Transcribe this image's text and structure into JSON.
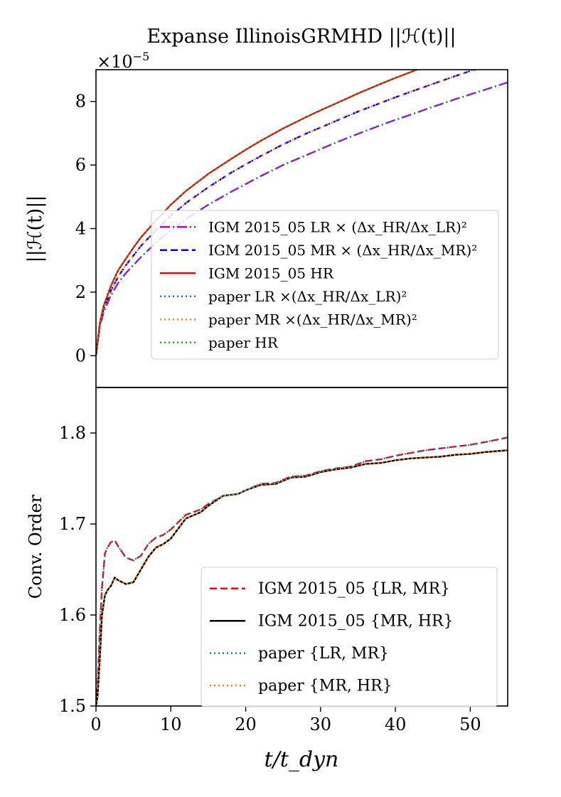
{
  "chart_data": [
    {
      "type": "line",
      "title": "Expanse IllinoisGRMHD ||ℋ(t)||",
      "ylabel": "||ℋ(t)||",
      "xlabel": "",
      "scale_label": "×10",
      "scale_exp": "−5",
      "xlim": [
        0,
        55
      ],
      "ylim": [
        -1.0,
        9.0
      ],
      "yticks": [
        {
          "value": 0,
          "label": "0"
        },
        {
          "value": 2,
          "label": "2"
        },
        {
          "value": 4,
          "label": "4"
        },
        {
          "value": 6,
          "label": "6"
        },
        {
          "value": 8,
          "label": "8"
        }
      ],
      "legend_position": "lower-right",
      "x": [
        0,
        0.5,
        1,
        2,
        3,
        4,
        5,
        6,
        8,
        10,
        12,
        15,
        18,
        20,
        22,
        25,
        28,
        30,
        32,
        35,
        38,
        40,
        42,
        45,
        48,
        50,
        52,
        55
      ],
      "series": [
        {
          "name": "IGM 2015_05 LR × (Δx_HR/Δx_LR)²",
          "color": "#bf00bf",
          "dash": "dashdot",
          "values": [
            0.0,
            0.9,
            1.35,
            1.9,
            2.3,
            2.6,
            2.85,
            3.1,
            3.55,
            3.95,
            4.3,
            4.75,
            5.15,
            5.4,
            5.65,
            6.0,
            6.3,
            6.5,
            6.7,
            6.98,
            7.25,
            7.42,
            7.58,
            7.83,
            8.07,
            8.22,
            8.37,
            8.6
          ]
        },
        {
          "name": "IGM 2015_05 MR × (Δx_HR/Δx_MR)²",
          "color": "#0000ff",
          "dash": "dashed",
          "values": [
            0.0,
            0.95,
            1.45,
            2.05,
            2.5,
            2.85,
            3.15,
            3.45,
            3.95,
            4.4,
            4.8,
            5.3,
            5.75,
            6.02,
            6.28,
            6.65,
            6.98,
            7.18,
            7.38,
            7.68,
            7.95,
            8.13,
            8.3,
            8.55,
            8.8,
            8.96,
            9.1,
            9.35
          ]
        },
        {
          "name": "IGM 2015_05 HR",
          "color": "#ff0000",
          "dash": "solid",
          "values": [
            0.0,
            1.0,
            1.55,
            2.2,
            2.7,
            3.05,
            3.4,
            3.72,
            4.25,
            4.75,
            5.18,
            5.72,
            6.18,
            6.48,
            6.76,
            7.15,
            7.5,
            7.72,
            7.93,
            8.25,
            8.55,
            8.74,
            8.92,
            9.2,
            9.45,
            9.62,
            9.78,
            10.0
          ]
        },
        {
          "name": "paper LR ×(Δx_HR/Δx_LR)²",
          "color": "#1f77b4",
          "dash": "dotted",
          "values": [
            0.0,
            0.9,
            1.35,
            1.9,
            2.3,
            2.6,
            2.85,
            3.1,
            3.55,
            3.95,
            4.3,
            4.75,
            5.15,
            5.4,
            5.65,
            6.0,
            6.3,
            6.5,
            6.7,
            6.98,
            7.25,
            7.42,
            7.58,
            7.83,
            8.07,
            8.22,
            8.37,
            8.6
          ]
        },
        {
          "name": "paper MR ×(Δx_HR/Δx_MR)²",
          "color": "#ff7f0e",
          "dash": "dotted",
          "values": [
            0.0,
            0.95,
            1.45,
            2.05,
            2.5,
            2.85,
            3.15,
            3.45,
            3.95,
            4.4,
            4.8,
            5.3,
            5.75,
            6.02,
            6.28,
            6.65,
            6.98,
            7.18,
            7.38,
            7.68,
            7.95,
            8.13,
            8.3,
            8.55,
            8.8,
            8.96,
            9.1,
            9.35
          ]
        },
        {
          "name": "paper HR",
          "color": "#2ca02c",
          "dash": "dotted",
          "values": [
            0.0,
            1.0,
            1.55,
            2.2,
            2.7,
            3.05,
            3.4,
            3.72,
            4.25,
            4.75,
            5.18,
            5.72,
            6.18,
            6.48,
            6.76,
            7.15,
            7.5,
            7.72,
            7.93,
            8.25,
            8.55,
            8.74,
            8.92,
            9.2,
            9.45,
            9.62,
            9.78,
            10.0
          ]
        }
      ]
    },
    {
      "type": "line",
      "title": "",
      "ylabel": "Conv. Order",
      "xlabel": "t/t_dyn",
      "xlim": [
        0,
        55
      ],
      "ylim": [
        1.5,
        1.85
      ],
      "xticks": [
        {
          "value": 0,
          "label": "0"
        },
        {
          "value": 10,
          "label": "10"
        },
        {
          "value": 20,
          "label": "20"
        },
        {
          "value": 30,
          "label": "30"
        },
        {
          "value": 40,
          "label": "40"
        },
        {
          "value": 50,
          "label": "50"
        }
      ],
      "yticks": [
        {
          "value": 1.5,
          "label": "1.5"
        },
        {
          "value": 1.6,
          "label": "1.6"
        },
        {
          "value": 1.7,
          "label": "1.7"
        },
        {
          "value": 1.8,
          "label": "1.8"
        }
      ],
      "legend_position": "lower-right",
      "x": [
        0,
        0.2,
        0.5,
        0.8,
        1.2,
        1.6,
        2.0,
        2.5,
        3.0,
        4.0,
        5.0,
        6.0,
        7.0,
        8.0,
        9.0,
        10.0,
        12.0,
        14.0,
        15.0,
        17.0,
        19.0,
        20.0,
        22.0,
        24.0,
        26.0,
        28.0,
        30.0,
        32.0,
        34.0,
        36.0,
        38.0,
        40.0,
        42.0,
        44.0,
        46.0,
        48.0,
        50.0,
        52.0,
        55.0
      ],
      "series": [
        {
          "name": "IGM 2015_05 {LR, MR}",
          "color": "#ff0000",
          "dash": "dashed",
          "values": [
            1.5,
            1.52,
            1.58,
            1.63,
            1.668,
            1.675,
            1.68,
            1.682,
            1.675,
            1.663,
            1.66,
            1.665,
            1.678,
            1.685,
            1.688,
            1.694,
            1.71,
            1.716,
            1.722,
            1.731,
            1.733,
            1.737,
            1.744,
            1.745,
            1.752,
            1.753,
            1.758,
            1.761,
            1.763,
            1.769,
            1.771,
            1.775,
            1.778,
            1.781,
            1.783,
            1.785,
            1.787,
            1.79,
            1.795
          ]
        },
        {
          "name": "IGM 2015_05 {MR, HR}",
          "color": "#000000",
          "dash": "solid",
          "values": [
            1.5,
            1.51,
            1.55,
            1.6,
            1.622,
            1.628,
            1.632,
            1.641,
            1.638,
            1.634,
            1.636,
            1.65,
            1.664,
            1.674,
            1.678,
            1.684,
            1.706,
            1.713,
            1.72,
            1.731,
            1.733,
            1.737,
            1.743,
            1.744,
            1.751,
            1.752,
            1.757,
            1.76,
            1.762,
            1.766,
            1.767,
            1.77,
            1.772,
            1.773,
            1.774,
            1.776,
            1.777,
            1.779,
            1.781
          ]
        },
        {
          "name": "paper {LR, MR}",
          "color": "#1f77b4",
          "dash": "dotted",
          "values": [
            1.5,
            1.52,
            1.58,
            1.63,
            1.668,
            1.675,
            1.68,
            1.682,
            1.675,
            1.663,
            1.66,
            1.665,
            1.678,
            1.685,
            1.688,
            1.694,
            1.71,
            1.716,
            1.722,
            1.731,
            1.733,
            1.737,
            1.744,
            1.745,
            1.752,
            1.753,
            1.758,
            1.761,
            1.763,
            1.769,
            1.771,
            1.775,
            1.778,
            1.781,
            1.783,
            1.785,
            1.787,
            1.79,
            1.795
          ]
        },
        {
          "name": "paper {MR, HR}",
          "color": "#ff7f0e",
          "dash": "dotted",
          "values": [
            1.5,
            1.51,
            1.55,
            1.6,
            1.622,
            1.628,
            1.632,
            1.641,
            1.638,
            1.634,
            1.636,
            1.65,
            1.664,
            1.674,
            1.678,
            1.684,
            1.706,
            1.713,
            1.72,
            1.731,
            1.733,
            1.737,
            1.743,
            1.744,
            1.751,
            1.752,
            1.757,
            1.76,
            1.762,
            1.766,
            1.767,
            1.77,
            1.772,
            1.773,
            1.774,
            1.776,
            1.777,
            1.779,
            1.781
          ]
        }
      ]
    }
  ]
}
